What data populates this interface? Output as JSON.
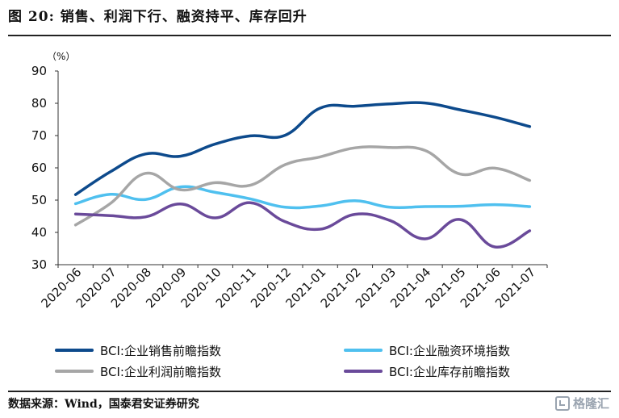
{
  "figure_title": "图 20:   销售、利润下行、融资持平、库存回升",
  "source": "数据来源：Wind，国泰君安证券研究",
  "watermark": "格隆汇",
  "chart_data": {
    "type": "line",
    "unit": "（%）",
    "categories": [
      "2020-06",
      "2020-07",
      "2020-08",
      "2020-09",
      "2020-10",
      "2020-11",
      "2020-12",
      "2021-01",
      "2021-02",
      "2021-03",
      "2021-04",
      "2021-05",
      "2021-06",
      "2021-07"
    ],
    "ylim": [
      30,
      90
    ],
    "yticks": [
      30,
      40,
      50,
      60,
      70,
      80,
      90
    ],
    "grid": false,
    "legend_position": "bottom",
    "series": [
      {
        "name": "BCI:企业销售前瞻指数",
        "color": "#0d4a8c",
        "values": [
          51.7,
          58.8,
          64.3,
          63.6,
          67.4,
          69.9,
          70.1,
          78.5,
          79.1,
          79.8,
          80.1,
          78.0,
          75.7,
          72.8
        ]
      },
      {
        "name": "BCI:企业融资环境指数",
        "color": "#4fc0ef",
        "values": [
          48.9,
          51.8,
          50.2,
          54.1,
          52.4,
          50.4,
          47.8,
          48.2,
          49.8,
          47.8,
          48.0,
          48.1,
          48.6,
          48.0
        ]
      },
      {
        "name": "BCI:企业利润前瞻指数",
        "color": "#a6a6a6",
        "values": [
          42.3,
          49.0,
          58.3,
          53.2,
          55.4,
          54.6,
          61.0,
          63.4,
          66.2,
          66.3,
          65.4,
          58.1,
          59.9,
          56.1
        ]
      },
      {
        "name": "BCI:企业库存前瞻指数",
        "color": "#6a4a9a",
        "values": [
          45.7,
          45.2,
          44.8,
          48.8,
          44.5,
          49.2,
          43.3,
          41.0,
          45.6,
          43.7,
          38.0,
          44.0,
          35.5,
          40.5
        ]
      }
    ]
  }
}
